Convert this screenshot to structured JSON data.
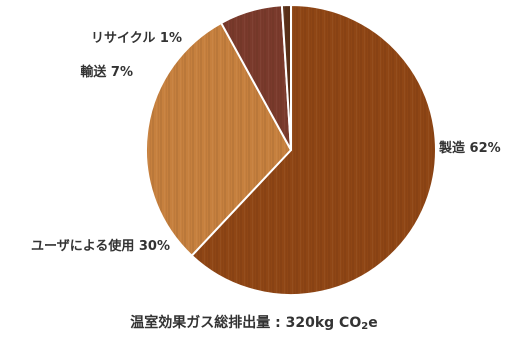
{
  "chart_data": {
    "type": "pie",
    "slices": [
      {
        "label": "製造",
        "value": 62,
        "display": "製造 62%",
        "color": "#8f4615"
      },
      {
        "label": "ユーザによる使用",
        "value": 30,
        "display": "ユーザによる使用 30%",
        "color": "#c6803e"
      },
      {
        "label": "輸送",
        "value": 7,
        "display": "輸送 7%",
        "color": "#7a3a2c"
      },
      {
        "label": "リサイクル",
        "value": 1,
        "display": "リサイクル 1%",
        "color": "#5a3018"
      }
    ],
    "start_angle_deg": 0,
    "direction": "clockwise",
    "slice_separator_color": "#ffffff"
  },
  "caption": {
    "prefix": "温室効果ガス総排出量 : 320kg CO",
    "subscript": "2",
    "suffix": "e"
  }
}
